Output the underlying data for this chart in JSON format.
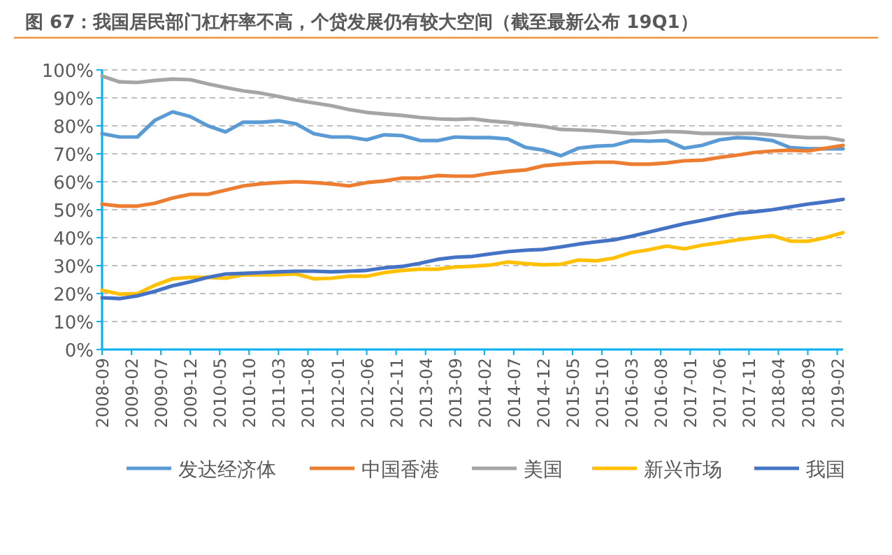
{
  "chart_data": {
    "type": "line",
    "title": "图 67：我国居民部门杠杆率不高，个贷发展仍有较大空间（截至最新公布 19Q1）",
    "x": [
      "2008-09",
      "2008-12",
      "2009-03",
      "2009-06",
      "2009-09",
      "2009-12",
      "2010-03",
      "2010-06",
      "2010-09",
      "2010-12",
      "2011-03",
      "2011-06",
      "2011-09",
      "2011-12",
      "2012-03",
      "2012-06",
      "2012-09",
      "2012-12",
      "2013-03",
      "2013-06",
      "2013-09",
      "2013-12",
      "2014-03",
      "2014-06",
      "2014-09",
      "2014-12",
      "2015-03",
      "2015-06",
      "2015-09",
      "2015-12",
      "2016-03",
      "2016-06",
      "2016-09",
      "2016-12",
      "2017-03",
      "2017-06",
      "2017-09",
      "2017-12",
      "2018-03",
      "2018-06",
      "2018-09",
      "2018-12",
      "2019-03"
    ],
    "series": [
      {
        "name": "发达经济体",
        "color": "#5b9bd5",
        "values": [
          77.2,
          76,
          76,
          82,
          85,
          83.3,
          80,
          77.8,
          81.3,
          81.3,
          81.8,
          80.7,
          77.2,
          76,
          76,
          75,
          76.8,
          76.5,
          74.8,
          74.7,
          76,
          75.8,
          75.8,
          75.3,
          72.3,
          71.3,
          69.3,
          72,
          72.7,
          73,
          74.7,
          74.5,
          74.7,
          72,
          73,
          75,
          75.8,
          75.5,
          74.7,
          72.2,
          71.8,
          71.8,
          71.8
        ]
      },
      {
        "name": "中国香港",
        "color": "#ed7d31",
        "values": [
          52,
          51.3,
          51.3,
          52.3,
          54.2,
          55.5,
          55.5,
          57,
          58.5,
          59.3,
          59.7,
          60,
          59.7,
          59.2,
          58.5,
          59.7,
          60.3,
          61.3,
          61.3,
          62.2,
          62,
          62,
          63,
          63.7,
          64.2,
          65.7,
          66.3,
          66.7,
          67,
          67,
          66.3,
          66.3,
          66.7,
          67.5,
          67.7,
          68.7,
          69.5,
          70.5,
          71,
          71.3,
          71,
          72,
          73
        ]
      },
      {
        "name": "美国",
        "color": "#a5a5a5",
        "values": [
          97.8,
          95.7,
          95.5,
          96.2,
          96.7,
          96.5,
          95,
          93.7,
          92.5,
          91.7,
          90.5,
          89.2,
          88.2,
          87.2,
          85.8,
          84.8,
          84.2,
          83.7,
          83,
          82.5,
          82.3,
          82.5,
          81.7,
          81.2,
          80.5,
          79.8,
          78.7,
          78.5,
          78.2,
          77.7,
          77.2,
          77.5,
          78,
          77.8,
          77.3,
          77.3,
          77.3,
          77.3,
          76.8,
          76.2,
          75.8,
          75.8,
          74.8
        ]
      },
      {
        "name": "新兴市场",
        "color": "#ffc000",
        "values": [
          21.2,
          19.8,
          20,
          23,
          25.3,
          25.8,
          25.8,
          25.5,
          26.7,
          26.7,
          26.8,
          27,
          25.3,
          25.5,
          26.2,
          26.2,
          27.5,
          28.3,
          28.7,
          28.7,
          29.5,
          29.8,
          30.2,
          31.3,
          30.7,
          30.3,
          30.5,
          32,
          31.7,
          32.7,
          34.7,
          35.7,
          37,
          36,
          37.3,
          38.2,
          39.2,
          40,
          40.7,
          38.8,
          38.7,
          40,
          41.8
        ]
      },
      {
        "name": "我国",
        "color": "#4472c4",
        "values": [
          18.5,
          18.2,
          19.2,
          20.8,
          22.8,
          24.2,
          25.8,
          27,
          27.2,
          27.5,
          27.8,
          28,
          28,
          27.8,
          28,
          28.3,
          29.2,
          29.7,
          30.8,
          32.2,
          33,
          33.3,
          34.2,
          35,
          35.5,
          35.8,
          36.7,
          37.7,
          38.5,
          39.2,
          40.5,
          42,
          43.5,
          45,
          46.2,
          47.5,
          48.7,
          49.3,
          50,
          51,
          52,
          52.8,
          53.7
        ]
      }
    ],
    "xlim": [
      "2008-09",
      "2019-03"
    ],
    "xticks": [
      "2008-09",
      "2009-02",
      "2009-07",
      "2009-12",
      "2010-05",
      "2010-10",
      "2011-03",
      "2011-08",
      "2012-01",
      "2012-06",
      "2012-11",
      "2013-04",
      "2013-09",
      "2014-02",
      "2014-07",
      "2014-12",
      "2015-05",
      "2015-10",
      "2016-03",
      "2016-08",
      "2017-01",
      "2017-06",
      "2017-11",
      "2018-04",
      "2018-09",
      "2019-02"
    ],
    "ylim": [
      0,
      100
    ],
    "yticks": [
      {
        "value": 0,
        "label": "0%"
      },
      {
        "value": 10,
        "label": "10%"
      },
      {
        "value": 20,
        "label": "20%"
      },
      {
        "value": 30,
        "label": "30%"
      },
      {
        "value": 40,
        "label": "40%"
      },
      {
        "value": 50,
        "label": "50%"
      },
      {
        "value": 60,
        "label": "60%"
      },
      {
        "value": 70,
        "label": "70%"
      },
      {
        "value": 80,
        "label": "80%"
      },
      {
        "value": 90,
        "label": "90%"
      },
      {
        "value": 100,
        "label": "100%"
      }
    ],
    "grid": "y",
    "legend": "bottom",
    "marker": "none",
    "line_style": "solid"
  }
}
